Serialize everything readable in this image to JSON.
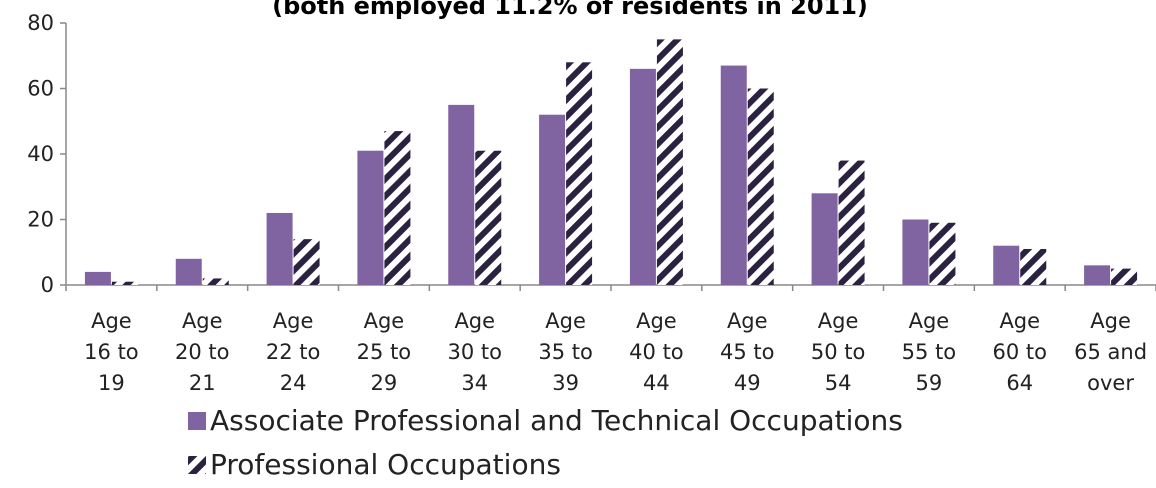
{
  "chart_data": {
    "type": "bar",
    "title": "(both employed 11.2% of residents in 2011)",
    "categories": [
      [
        "Age",
        "16 to",
        "19"
      ],
      [
        "Age",
        "20 to",
        "21"
      ],
      [
        "Age",
        "22 to",
        "24"
      ],
      [
        "Age",
        "25 to",
        "29"
      ],
      [
        "Age",
        "30 to",
        "34"
      ],
      [
        "Age",
        "35 to",
        "39"
      ],
      [
        "Age",
        "40 to",
        "44"
      ],
      [
        "Age",
        "45 to",
        "49"
      ],
      [
        "Age",
        "50 to",
        "54"
      ],
      [
        "Age",
        "55 to",
        "59"
      ],
      [
        "Age",
        "60 to",
        "64"
      ],
      [
        "Age",
        "65 and",
        "over"
      ]
    ],
    "series": [
      {
        "name": "Associate Professional and Technical Occupations",
        "values": [
          4,
          8,
          22,
          41,
          55,
          52,
          66,
          67,
          28,
          20,
          12,
          6
        ],
        "color": "#8064A2",
        "pattern": "solid"
      },
      {
        "name": "Professional Occupations",
        "values": [
          1,
          2,
          14,
          47,
          41,
          68,
          75,
          60,
          38,
          19,
          11,
          5
        ],
        "color": "#2B2140",
        "pattern": "diagonal-stripes"
      }
    ],
    "ylim": [
      0,
      80
    ],
    "yticks": [
      0,
      20,
      40,
      60,
      80
    ],
    "xlabel": "",
    "ylabel": "",
    "grid": false,
    "legend_position": "bottom"
  }
}
